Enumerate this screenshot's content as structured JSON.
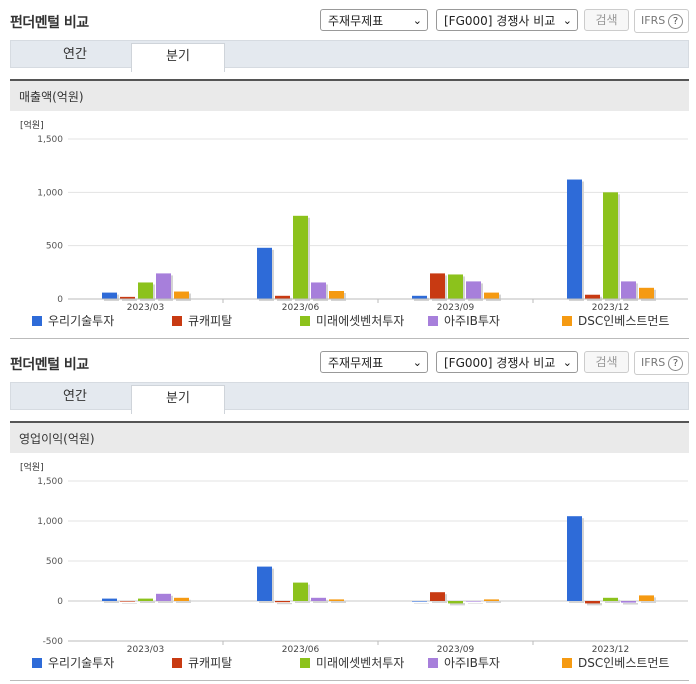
{
  "sections": [
    {
      "title": "펀더멘털 비교",
      "select1": "주재무제표",
      "select2": "[FG000] 경쟁사 비교",
      "search_label": "검색",
      "ifrs_label": "IFRS",
      "ifrs_help": "?",
      "tabs": [
        "연간",
        "분기"
      ],
      "active_tab": "분기",
      "chart_header": "매출액(억원)",
      "unit": "[억원]"
    },
    {
      "title": "펀더멘털 비교",
      "select1": "주재무제표",
      "select2": "[FG000] 경쟁사 비교",
      "search_label": "검색",
      "ifrs_label": "IFRS",
      "ifrs_help": "?",
      "tabs": [
        "연간",
        "분기"
      ],
      "active_tab": "분기",
      "chart_header": "영업이익(억원)",
      "unit": "[억원]"
    }
  ],
  "chart_data": [
    {
      "type": "bar",
      "title": "매출액(억원)",
      "ylabel": "[억원]",
      "ylim": [
        0,
        1500
      ],
      "yticks": [
        0,
        500,
        1000,
        1500
      ],
      "ytick_labels": [
        "0",
        "500",
        "1,000",
        "1,500"
      ],
      "categories": [
        "2023/03",
        "2023/06",
        "2023/09",
        "2023/12"
      ],
      "series": [
        {
          "name": "우리기술투자",
          "color": "#2e6bd8",
          "values": [
            60,
            480,
            30,
            1120
          ]
        },
        {
          "name": "큐캐피탈",
          "color": "#c83a12",
          "values": [
            20,
            30,
            240,
            40
          ]
        },
        {
          "name": "미래에셋벤처투자",
          "color": "#8cc21c",
          "values": [
            155,
            780,
            230,
            1000
          ]
        },
        {
          "name": "아주IB투자",
          "color": "#a77fdb",
          "values": [
            240,
            155,
            165,
            165
          ]
        },
        {
          "name": "DSC인베스트먼트",
          "color": "#f59a12",
          "values": [
            70,
            75,
            60,
            105
          ]
        }
      ],
      "legend": "bottom"
    },
    {
      "type": "bar",
      "title": "영업이익(억원)",
      "ylabel": "[억원]",
      "ylim": [
        -500,
        1500
      ],
      "yticks": [
        -500,
        0,
        500,
        1000,
        1500
      ],
      "ytick_labels": [
        "-500",
        "0",
        "500",
        "1,000",
        "1,500"
      ],
      "categories": [
        "2023/03",
        "2023/06",
        "2023/09",
        "2023/12"
      ],
      "series": [
        {
          "name": "우리기술투자",
          "color": "#2e6bd8",
          "values": [
            30,
            430,
            0,
            1060
          ]
        },
        {
          "name": "큐캐피탈",
          "color": "#c83a12",
          "values": [
            0,
            -15,
            110,
            -30
          ]
        },
        {
          "name": "미래에셋벤처투자",
          "color": "#8cc21c",
          "values": [
            30,
            230,
            -30,
            40
          ]
        },
        {
          "name": "아주IB투자",
          "color": "#a77fdb",
          "values": [
            90,
            40,
            0,
            -20
          ]
        },
        {
          "name": "DSC인베스트먼트",
          "color": "#f59a12",
          "values": [
            40,
            20,
            20,
            70
          ]
        }
      ],
      "legend": "bottom"
    }
  ]
}
